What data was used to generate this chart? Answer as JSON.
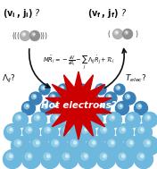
{
  "bg_color": "#ffffff",
  "fig_width": 1.76,
  "fig_height": 1.89,
  "dpi": 100,
  "slab_color_base": "#6db8dc",
  "slab_color_dark": "#3a80b8",
  "slab_color_light": "#aaddee",
  "slab_color_spec": "#ddf0fa",
  "hot_text": "Hot electrons?",
  "hot_text_color": "#ffffff",
  "hot_bg_color": "#cc0000",
  "arrow_color": "#111111",
  "eq_color": "#111111",
  "label_color": "#111111",
  "mol_color1": "#bbbbbb",
  "mol_color2": "#888888",
  "mol_color3": "#666666"
}
